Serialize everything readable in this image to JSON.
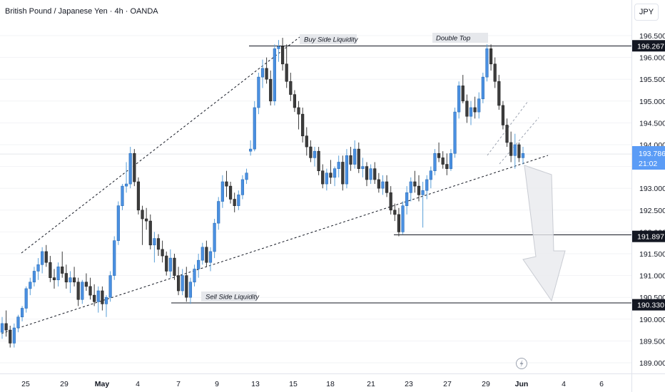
{
  "chart_data": {
    "type": "candlestick",
    "title": "British Pound / Japanese Yen · 4h · OANDA",
    "currency": "JPY",
    "y_ticks": [
      189.0,
      189.5,
      190.0,
      190.5,
      191.0,
      191.5,
      192.0,
      192.5,
      193.0,
      193.5,
      194.0,
      194.5,
      195.0,
      195.5,
      196.0,
      196.5
    ],
    "y_tick_labels": [
      "189.000",
      "189.500",
      "190.000",
      "190.500",
      "191.000",
      "191.500",
      "192.000",
      "192.500",
      "193.000",
      "193.500",
      "194.000",
      "194.500",
      "195.000",
      "195.500",
      "196.000",
      "196.500"
    ],
    "x_labels": [
      "25",
      "29",
      "May",
      "4",
      "7",
      "9",
      "13",
      "15",
      "18",
      "21",
      "23",
      "27",
      "29",
      "Jun",
      "4",
      "6"
    ],
    "price_tags": [
      {
        "label": "196.267",
        "value": 196.267
      },
      {
        "label": "191.897",
        "value": 191.897
      },
      {
        "label": "190.330",
        "value": 190.33
      }
    ],
    "current_price": {
      "label": "193.786",
      "countdown": "21:02",
      "value": 193.786
    },
    "annotations": [
      {
        "text": "Buy Side Liquidity"
      },
      {
        "text": "Double Top"
      },
      {
        "text": "Sell Side Liquidity"
      }
    ],
    "candles": [
      [
        189.7,
        190.05,
        189.55,
        189.9
      ],
      [
        189.9,
        190.2,
        189.6,
        189.75
      ],
      [
        189.75,
        189.85,
        189.35,
        189.45
      ],
      [
        189.45,
        189.9,
        189.35,
        189.8
      ],
      [
        189.8,
        190.1,
        189.7,
        190.05
      ],
      [
        190.05,
        190.3,
        189.95,
        190.25
      ],
      [
        190.25,
        190.75,
        190.15,
        190.7
      ],
      [
        190.7,
        190.95,
        190.55,
        190.85
      ],
      [
        190.85,
        191.2,
        190.75,
        191.1
      ],
      [
        191.1,
        191.4,
        190.9,
        191.25
      ],
      [
        191.25,
        191.65,
        191.05,
        191.55
      ],
      [
        191.55,
        191.7,
        191.2,
        191.3
      ],
      [
        191.3,
        191.45,
        190.85,
        190.95
      ],
      [
        190.95,
        191.15,
        190.7,
        190.9
      ],
      [
        190.9,
        191.3,
        190.75,
        191.2
      ],
      [
        191.2,
        191.55,
        190.95,
        191.05
      ],
      [
        191.05,
        191.25,
        190.7,
        190.85
      ],
      [
        190.85,
        191.1,
        190.6,
        190.95
      ],
      [
        190.95,
        191.2,
        190.75,
        190.85
      ],
      [
        190.85,
        190.95,
        190.3,
        190.45
      ],
      [
        190.45,
        190.9,
        190.35,
        190.85
      ],
      [
        190.85,
        191.05,
        190.65,
        190.75
      ],
      [
        190.75,
        190.95,
        190.45,
        190.55
      ],
      [
        190.55,
        190.8,
        190.3,
        190.4
      ],
      [
        190.4,
        190.75,
        190.15,
        190.65
      ],
      [
        190.65,
        190.75,
        190.2,
        190.35
      ],
      [
        190.35,
        190.55,
        190.05,
        190.5
      ],
      [
        190.5,
        191.1,
        190.4,
        191.0
      ],
      [
        191.0,
        191.9,
        190.9,
        191.8
      ],
      [
        191.8,
        192.7,
        191.7,
        192.6
      ],
      [
        192.6,
        193.1,
        192.5,
        193.05
      ],
      [
        193.05,
        193.6,
        192.9,
        193.1
      ],
      [
        193.1,
        193.95,
        193.0,
        193.8
      ],
      [
        193.8,
        193.9,
        193.05,
        193.15
      ],
      [
        193.15,
        193.25,
        192.4,
        192.5
      ],
      [
        192.5,
        192.6,
        191.7,
        192.3
      ],
      [
        192.3,
        192.55,
        192.05,
        192.25
      ],
      [
        192.25,
        192.4,
        191.6,
        191.7
      ],
      [
        191.7,
        192.0,
        191.3,
        191.85
      ],
      [
        191.85,
        191.95,
        191.45,
        191.6
      ],
      [
        191.6,
        191.8,
        191.3,
        191.45
      ],
      [
        191.45,
        191.55,
        191.0,
        191.1
      ],
      [
        191.1,
        191.6,
        190.95,
        191.4
      ],
      [
        191.4,
        191.5,
        190.9,
        191.0
      ],
      [
        191.0,
        191.2,
        190.55,
        190.65
      ],
      [
        190.65,
        191.15,
        190.55,
        191.0
      ],
      [
        191.0,
        191.2,
        190.4,
        190.5
      ],
      [
        190.5,
        190.95,
        190.35,
        190.85
      ],
      [
        190.85,
        191.25,
        190.75,
        191.15
      ],
      [
        191.15,
        191.5,
        190.95,
        191.35
      ],
      [
        191.35,
        191.75,
        191.25,
        191.65
      ],
      [
        191.65,
        191.8,
        191.2,
        191.3
      ],
      [
        191.3,
        191.65,
        191.1,
        191.55
      ],
      [
        191.55,
        192.3,
        191.4,
        192.2
      ],
      [
        192.2,
        192.8,
        192.05,
        192.7
      ],
      [
        192.7,
        193.3,
        192.55,
        193.15
      ],
      [
        193.15,
        193.4,
        192.8,
        193.05
      ],
      [
        193.05,
        193.15,
        192.65,
        192.75
      ],
      [
        192.75,
        192.9,
        192.45,
        192.6
      ],
      [
        192.6,
        192.95,
        192.5,
        192.85
      ],
      [
        192.85,
        193.3,
        192.75,
        193.2
      ],
      [
        193.2,
        193.45,
        193.1,
        193.35
      ],
      [
        193.85,
        194.1,
        193.75,
        193.9
      ],
      [
        193.9,
        195.0,
        193.85,
        194.85
      ],
      [
        194.85,
        195.65,
        194.7,
        195.55
      ],
      [
        195.55,
        195.95,
        195.3,
        195.75
      ],
      [
        195.75,
        196.0,
        195.4,
        195.5
      ],
      [
        195.5,
        195.7,
        194.9,
        195.0
      ],
      [
        195.0,
        196.3,
        194.9,
        196.2
      ],
      [
        196.2,
        196.4,
        195.9,
        196.25
      ],
      [
        196.25,
        196.45,
        195.7,
        195.85
      ],
      [
        195.85,
        196.3,
        195.3,
        195.45
      ],
      [
        195.45,
        195.65,
        195.0,
        195.15
      ],
      [
        195.15,
        195.25,
        194.75,
        194.85
      ],
      [
        194.85,
        195.0,
        194.35,
        194.7
      ],
      [
        194.7,
        194.85,
        194.05,
        194.2
      ],
      [
        194.2,
        194.4,
        193.75,
        193.95
      ],
      [
        193.95,
        194.1,
        193.6,
        193.7
      ],
      [
        193.7,
        193.95,
        193.5,
        193.85
      ],
      [
        193.85,
        193.95,
        193.3,
        193.4
      ],
      [
        193.4,
        193.55,
        193.0,
        193.1
      ],
      [
        193.1,
        193.45,
        192.95,
        193.35
      ],
      [
        193.35,
        193.65,
        193.1,
        193.25
      ],
      [
        193.25,
        193.5,
        193.05,
        193.45
      ],
      [
        193.45,
        193.75,
        193.25,
        193.6
      ],
      [
        193.6,
        193.75,
        192.95,
        193.1
      ],
      [
        193.1,
        193.9,
        193.0,
        193.75
      ],
      [
        193.75,
        193.95,
        193.4,
        193.55
      ],
      [
        193.55,
        194.1,
        193.45,
        193.9
      ],
      [
        193.9,
        194.05,
        193.35,
        193.45
      ],
      [
        193.45,
        193.7,
        193.25,
        193.5
      ],
      [
        193.5,
        193.6,
        193.05,
        193.2
      ],
      [
        193.2,
        193.55,
        193.1,
        193.45
      ],
      [
        193.45,
        193.6,
        193.1,
        193.2
      ],
      [
        193.2,
        193.35,
        192.9,
        193.0
      ],
      [
        193.0,
        193.3,
        192.85,
        193.15
      ],
      [
        193.15,
        193.3,
        192.8,
        192.9
      ],
      [
        192.9,
        193.05,
        192.4,
        192.5
      ],
      [
        192.5,
        192.65,
        192.25,
        192.4
      ],
      [
        192.4,
        192.55,
        191.9,
        192.0
      ],
      [
        192.0,
        192.7,
        191.95,
        192.6
      ],
      [
        192.6,
        193.05,
        192.4,
        192.9
      ],
      [
        192.9,
        193.25,
        192.7,
        193.15
      ],
      [
        193.15,
        193.4,
        192.9,
        193.05
      ],
      [
        193.05,
        193.3,
        192.7,
        192.85
      ],
      [
        192.85,
        193.15,
        192.1,
        192.95
      ],
      [
        192.95,
        193.3,
        192.75,
        193.2
      ],
      [
        193.2,
        193.5,
        193.0,
        193.4
      ],
      [
        193.4,
        193.9,
        193.3,
        193.8
      ],
      [
        193.8,
        194.05,
        193.6,
        193.7
      ],
      [
        193.7,
        193.85,
        193.45,
        193.55
      ],
      [
        193.55,
        193.8,
        193.3,
        193.45
      ],
      [
        193.45,
        193.9,
        193.4,
        193.8
      ],
      [
        193.8,
        194.85,
        193.7,
        194.75
      ],
      [
        194.75,
        195.45,
        194.6,
        195.35
      ],
      [
        195.35,
        195.6,
        194.95,
        195.0
      ],
      [
        195.0,
        195.15,
        194.5,
        194.65
      ],
      [
        194.65,
        195.0,
        194.45,
        194.85
      ],
      [
        194.85,
        195.1,
        194.6,
        194.75
      ],
      [
        194.75,
        195.2,
        194.6,
        195.05
      ],
      [
        195.05,
        195.65,
        194.95,
        195.55
      ],
      [
        195.55,
        196.3,
        195.45,
        196.2
      ],
      [
        196.2,
        196.3,
        195.7,
        195.85
      ],
      [
        195.85,
        196.0,
        195.3,
        195.45
      ],
      [
        195.45,
        195.6,
        194.8,
        194.9
      ],
      [
        194.9,
        195.0,
        194.35,
        194.45
      ],
      [
        194.45,
        194.6,
        193.95,
        194.05
      ],
      [
        194.05,
        194.3,
        193.6,
        193.75
      ],
      [
        193.75,
        194.25,
        193.45,
        194.0
      ],
      [
        194.0,
        194.05,
        193.6,
        193.7
      ],
      [
        193.7,
        193.95,
        193.55,
        193.8
      ]
    ]
  }
}
